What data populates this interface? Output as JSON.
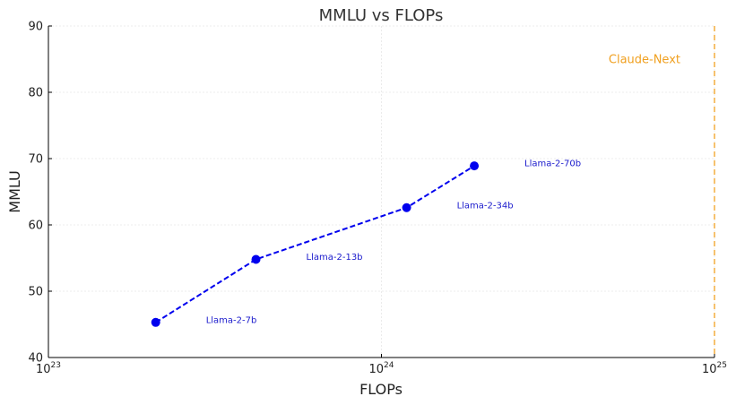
{
  "chart_data": {
    "type": "line",
    "title": "MMLU vs FLOPs",
    "xlabel": "FLOPs",
    "ylabel": "MMLU",
    "x_scale": "log",
    "xlim": [
      1e+23,
      1e+25
    ],
    "ylim": [
      40,
      90
    ],
    "x_ticks": [
      {
        "value": 1e+23,
        "base": "10",
        "exp": "23"
      },
      {
        "value": 1e+24,
        "base": "10",
        "exp": "24"
      },
      {
        "value": 1e+25,
        "base": "10",
        "exp": "25"
      }
    ],
    "y_ticks": [
      40,
      50,
      60,
      70,
      80,
      90
    ],
    "grid": true,
    "series": [
      {
        "color": "#0000ee",
        "line_style": "dashed",
        "marker": "circle",
        "points": [
          {
            "x": 2.1e+23,
            "y": 45.3,
            "label": "Llama-2-7b"
          },
          {
            "x": 4.2e+23,
            "y": 54.8,
            "label": "Llama-2-13b"
          },
          {
            "x": 1.19e+24,
            "y": 62.6,
            "label": "Llama-2-34b"
          },
          {
            "x": 1.9e+24,
            "y": 68.9,
            "label": "Llama-2-70b"
          }
        ]
      }
    ],
    "reference_lines": [
      {
        "x": 1e+25,
        "label": "Claude-Next",
        "color": "#f0a020",
        "line_style": "dashed"
      }
    ]
  }
}
